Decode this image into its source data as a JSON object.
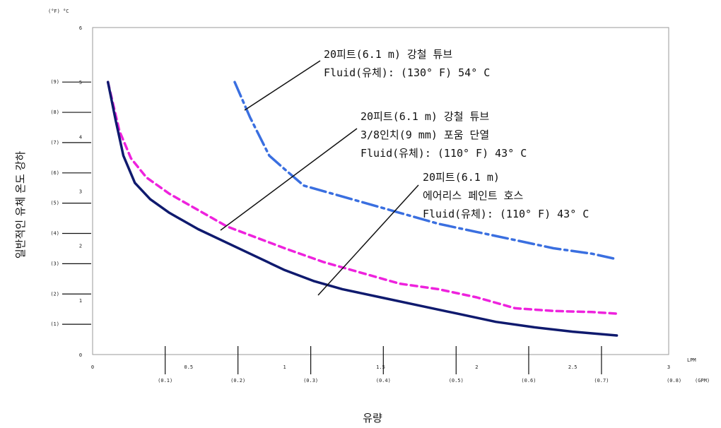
{
  "chart_data": {
    "type": "line",
    "xlabel": "유량",
    "ylabel": "일반적인 유체 온도 강하",
    "x_unit_primary": "LPM",
    "x_unit_secondary": "(GPM)",
    "y_unit_label": "(°F) °C",
    "xlim": [
      0,
      3
    ],
    "ylim": [
      0,
      6
    ],
    "x_ticks_lpm": [
      "0",
      "0.5",
      "1",
      "1.5",
      "2",
      "2.5",
      "3"
    ],
    "x_ticks_gpm": [
      {
        "label": "(0.1)",
        "lpm": 0.378
      },
      {
        "label": "(0.2)",
        "lpm": 0.757
      },
      {
        "label": "(0.3)",
        "lpm": 1.136
      },
      {
        "label": "(0.4)",
        "lpm": 1.514
      },
      {
        "label": "(0.5)",
        "lpm": 1.893
      },
      {
        "label": "(0.6)",
        "lpm": 2.271
      },
      {
        "label": "(0.7)",
        "lpm": 2.65
      },
      {
        "label": "(0.8)",
        "lpm": 3.028
      }
    ],
    "y_ticks_c": [
      "0",
      "1",
      "2",
      "3",
      "4",
      "5",
      "6"
    ],
    "y_ticks_f": [
      {
        "label": "(1)",
        "c": 0.556
      },
      {
        "label": "(2)",
        "c": 1.111
      },
      {
        "label": "(3)",
        "c": 1.667
      },
      {
        "label": "(4)",
        "c": 2.222
      },
      {
        "label": "(5)",
        "c": 2.778
      },
      {
        "label": "(6)",
        "c": 3.333
      },
      {
        "label": "(7)",
        "c": 3.889
      },
      {
        "label": "(8)",
        "c": 4.444
      },
      {
        "label": "(9)",
        "c": 5.0
      }
    ],
    "series": [
      {
        "color": "#3a6fe0",
        "style": "dash-dot",
        "x": [
          0.74,
          0.82,
          0.92,
          1.0,
          1.1,
          1.25,
          1.4,
          1.6,
          1.8,
          2.0,
          2.2,
          2.4,
          2.6,
          2.73
        ],
        "y": [
          5.0,
          4.35,
          3.65,
          3.4,
          3.1,
          2.95,
          2.8,
          2.6,
          2.4,
          2.25,
          2.1,
          1.95,
          1.85,
          1.75
        ]
      },
      {
        "color": "#ee22dd",
        "style": "dashed",
        "x": [
          0.08,
          0.14,
          0.2,
          0.28,
          0.4,
          0.55,
          0.7,
          0.85,
          1.0,
          1.2,
          1.4,
          1.6,
          1.8,
          2.0,
          2.2,
          2.4,
          2.6,
          2.73
        ],
        "y": [
          5.0,
          4.1,
          3.6,
          3.25,
          2.95,
          2.65,
          2.35,
          2.15,
          1.95,
          1.7,
          1.5,
          1.3,
          1.2,
          1.05,
          0.85,
          0.8,
          0.78,
          0.75
        ]
      },
      {
        "color": "#0f1a6e",
        "style": "solid",
        "x": [
          0.08,
          0.12,
          0.16,
          0.22,
          0.3,
          0.4,
          0.55,
          0.7,
          0.85,
          1.0,
          1.15,
          1.3,
          1.5,
          1.7,
          1.9,
          2.1,
          2.3,
          2.5,
          2.73
        ],
        "y": [
          5.0,
          4.3,
          3.65,
          3.15,
          2.85,
          2.6,
          2.3,
          2.05,
          1.8,
          1.55,
          1.35,
          1.2,
          1.05,
          0.9,
          0.75,
          0.6,
          0.5,
          0.42,
          0.35
        ]
      }
    ],
    "annotations": [
      {
        "lines": [
          "20피트(6.1 m) 강철 튜브",
          "Fluid(유체): (130° F) 54° C"
        ]
      },
      {
        "lines": [
          "20피트(6.1 m) 강철 튜브",
          "3/8인치(9 mm) 포움 단열",
          "Fluid(유체): (110° F) 43° C"
        ]
      },
      {
        "lines": [
          "20피트(6.1 m)",
          "에어리스 페인트 호스",
          "Fluid(유체): (110° F) 43° C"
        ]
      }
    ]
  }
}
